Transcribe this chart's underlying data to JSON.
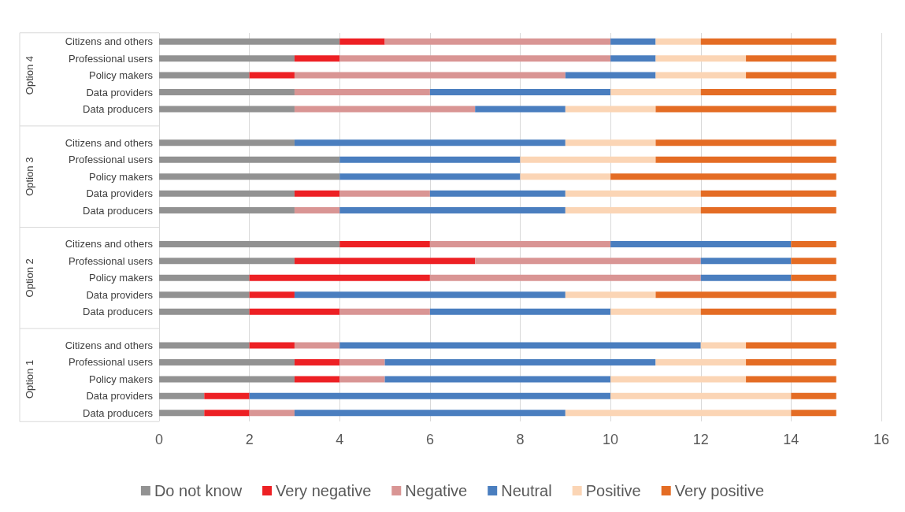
{
  "chart_data": {
    "type": "bar",
    "orientation": "horizontal",
    "stacked": true,
    "categories": [
      "Citizens and others",
      "Professional users",
      "Policy makers",
      "Data providers",
      "Data producers",
      null,
      "Citizens and others",
      "Professional users",
      "Policy makers",
      "Data providers",
      "Data producers",
      null,
      "Citizens and others",
      "Professional users",
      "Policy makers",
      "Data providers",
      "Data producers",
      null,
      "Citizens and others",
      "Professional users",
      "Policy makers",
      "Data providers",
      "Data producers"
    ],
    "series": [
      {
        "name": "Do not know",
        "color": "#929292",
        "values": [
          4,
          3,
          2,
          3,
          3,
          null,
          3,
          4,
          4,
          3,
          3,
          null,
          4,
          3,
          2,
          2,
          2,
          null,
          2,
          3,
          3,
          1,
          1
        ]
      },
      {
        "name": "Very negative",
        "color": "#ed2024",
        "values": [
          1,
          1,
          1,
          0,
          0,
          null,
          0,
          0,
          0,
          1,
          0,
          null,
          2,
          4,
          4,
          1,
          2,
          null,
          1,
          1,
          1,
          1,
          1
        ]
      },
      {
        "name": "Negative",
        "color": "#d99594",
        "values": [
          5,
          6,
          6,
          3,
          4,
          null,
          0,
          0,
          0,
          2,
          1,
          null,
          4,
          5,
          6,
          0,
          2,
          null,
          1,
          1,
          1,
          0,
          1
        ]
      },
      {
        "name": "Neutral",
        "color": "#4a7ebf",
        "values": [
          1,
          1,
          2,
          4,
          2,
          null,
          6,
          4,
          4,
          3,
          5,
          null,
          4,
          2,
          2,
          6,
          4,
          null,
          8,
          6,
          5,
          8,
          6
        ]
      },
      {
        "name": "Positive",
        "color": "#fbd5b5",
        "values": [
          1,
          2,
          2,
          2,
          2,
          null,
          2,
          3,
          2,
          3,
          3,
          null,
          0,
          0,
          0,
          2,
          2,
          null,
          1,
          2,
          3,
          4,
          5
        ]
      },
      {
        "name": "Very positive",
        "color": "#e46c24",
        "values": [
          3,
          2,
          2,
          3,
          4,
          null,
          4,
          4,
          5,
          3,
          3,
          null,
          1,
          1,
          1,
          4,
          3,
          null,
          2,
          2,
          2,
          1,
          1
        ]
      }
    ],
    "annotations": [
      "Option 4",
      "Option 3",
      "Option 2",
      "Option 1"
    ],
    "xlim": [
      0,
      16
    ],
    "xticks": [
      0,
      2,
      4,
      6,
      8,
      10,
      12,
      14,
      16
    ],
    "grid": "x",
    "legend": "bottom"
  }
}
